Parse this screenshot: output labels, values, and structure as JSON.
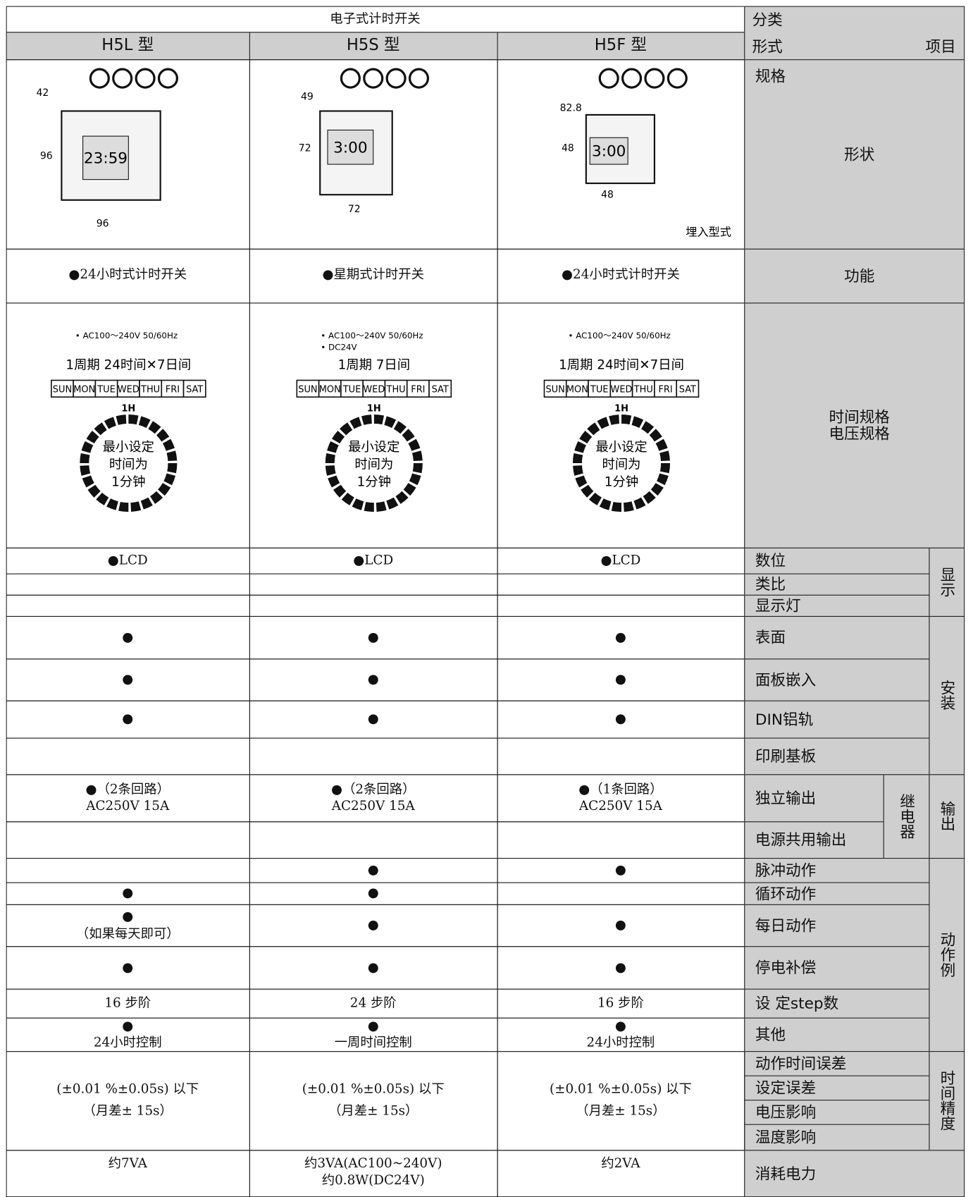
{
  "header": {
    "group": "电子式计时开关",
    "models": [
      "H5L 型",
      "H5S 型",
      "H5F 型"
    ],
    "category": "分类",
    "form": "形式",
    "item": "项目"
  },
  "shape": {
    "spec_label": "规格",
    "label": "形状",
    "products": [
      {
        "dims": [
          "42",
          "96",
          "96"
        ],
        "lcd": "23:59"
      },
      {
        "dims": [
          "49",
          "72",
          "72"
        ],
        "lcd": "3:00"
      },
      {
        "dims": [
          "82.8",
          "48",
          "48"
        ],
        "lcd": "3:00",
        "note": "埋入型式"
      }
    ]
  },
  "function": {
    "label": "功能",
    "cells": [
      "●24小时式计时开关",
      "●星期式计时开关",
      "●24小时式计时开关"
    ]
  },
  "timing": {
    "label": [
      "时间规格",
      "电压规格"
    ],
    "days": [
      "SUN",
      "MON",
      "TUE",
      "WED",
      "THU",
      "FRI",
      "SAT"
    ],
    "hour": "1H",
    "min_setting": [
      "最小设定",
      "时间为",
      "1分钟"
    ],
    "cells": [
      {
        "voltage": [
          "• AC100～240V  50/60Hz"
        ],
        "period": "1周期 24时间✕7日间"
      },
      {
        "voltage": [
          "• AC100～240V  50/60Hz",
          "• DC24V"
        ],
        "period": "1周期  7日间"
      },
      {
        "voltage": [
          "• AC100～240V  50/60Hz"
        ],
        "period": "1周期 24时间✕7日间"
      }
    ]
  },
  "groups": [
    {
      "label": "显示",
      "rows": [
        {
          "label": "数位",
          "cells": [
            "●LCD",
            "●LCD",
            "●LCD"
          ]
        },
        {
          "label": "类比",
          "cells": [
            null,
            null,
            null
          ]
        },
        {
          "label": "显示灯",
          "cells": [
            null,
            null,
            null
          ]
        }
      ]
    },
    {
      "label": "安装",
      "rows": [
        {
          "label": "表面",
          "cells": [
            "●",
            "●",
            "●"
          ]
        },
        {
          "label": "面板嵌入",
          "cells": [
            "●",
            "●",
            "●"
          ]
        },
        {
          "label": "DIN铝轨",
          "cells": [
            "●",
            "●",
            "●"
          ]
        },
        {
          "label": "印刷基板",
          "cells": [
            null,
            null,
            null
          ]
        }
      ]
    },
    {
      "label": "输出",
      "sub": "继电器",
      "rows": [
        {
          "label": "独立输出",
          "cells": [
            [
              "●（2条回路）",
              "AC250V  15A"
            ],
            [
              "●（2条回路）",
              "AC250V  15A"
            ],
            [
              "●（1条回路）",
              "AC250V  15A"
            ]
          ]
        },
        {
          "label": "电源共用输出",
          "cells": [
            null,
            null,
            null
          ]
        }
      ]
    },
    {
      "label": "动作例",
      "rows": [
        {
          "label": "脉冲动作",
          "cells": [
            null,
            "●",
            "●"
          ]
        },
        {
          "label": "循环动作",
          "cells": [
            "●",
            "●",
            null
          ]
        },
        {
          "label": "每日动作",
          "cells": [
            [
              "●",
              "（如果每天即可）"
            ],
            "●",
            "●"
          ]
        },
        {
          "label": "停电补偿",
          "cells": [
            "●",
            "●",
            "●"
          ]
        },
        {
          "label": "设 定step数",
          "cells": [
            "16 步阶",
            "24 步阶",
            "16 步阶"
          ]
        },
        {
          "label": "其他",
          "cells": [
            [
              "●",
              "24小时控制"
            ],
            [
              "●",
              "一周时间控制"
            ],
            [
              "●",
              "24小时控制"
            ]
          ]
        }
      ]
    },
    {
      "label": "时间精度",
      "rows": [
        {
          "label": "动作时间误差"
        },
        {
          "label": "设定误差"
        },
        {
          "label": "电压影响"
        },
        {
          "label": "温度影响"
        }
      ],
      "cells": [
        [
          "(±0.01 %±0.05s) 以下",
          "（月差± 15s）"
        ],
        [
          "(±0.01 %±0.05s) 以下",
          "（月差± 15s）"
        ],
        [
          "(±0.01 %±0.05s) 以下",
          "（月差± 15s）"
        ]
      ]
    }
  ],
  "power": {
    "label": "消耗电力",
    "cells": [
      "约7VA",
      [
        "约3VA(AC100~240V)",
        "约0.8W(DC24V)"
      ],
      "约2VA"
    ]
  }
}
